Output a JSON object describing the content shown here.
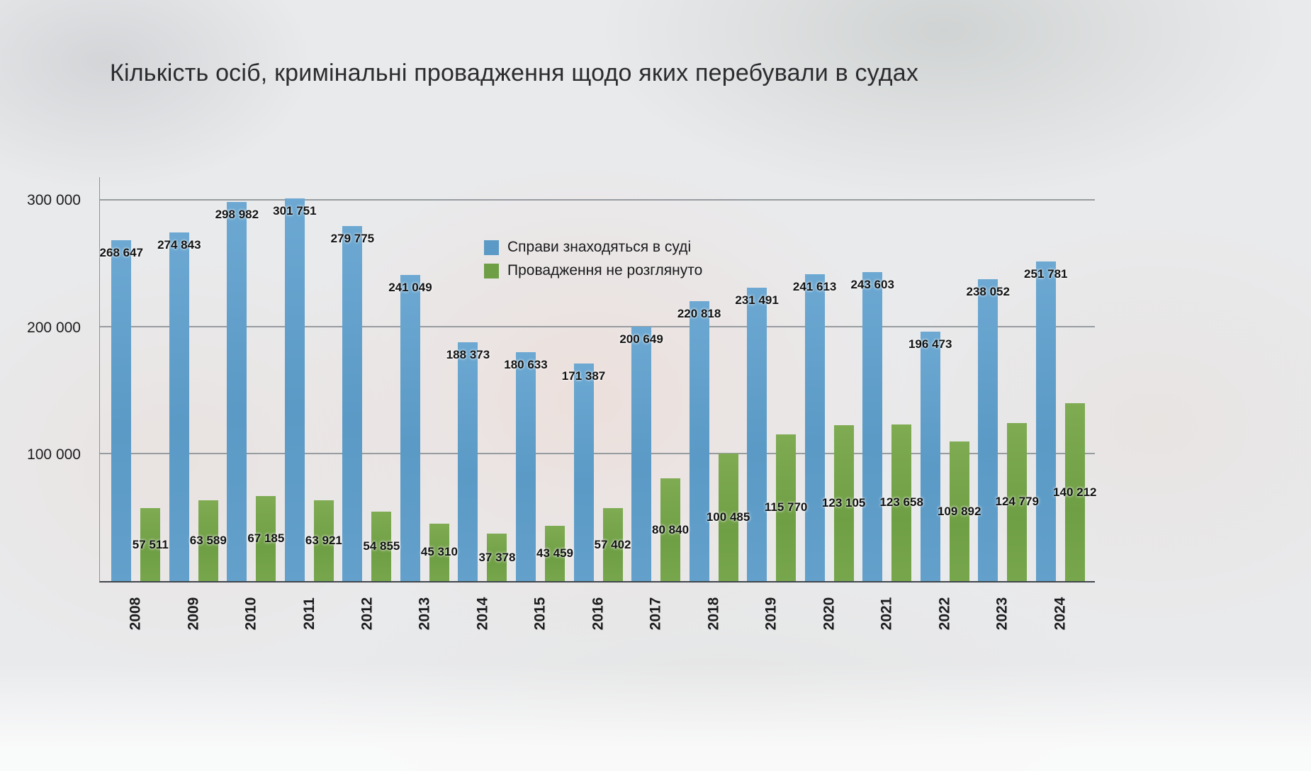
{
  "chart_data": {
    "type": "bar",
    "title": "Кількість осіб, кримінальні провадження щодо яких перебували в судах",
    "categories": [
      "2008",
      "2009",
      "2010",
      "2011",
      "2012",
      "2013",
      "2014",
      "2015",
      "2016",
      "2017",
      "2018",
      "2019",
      "2020",
      "2021",
      "2022",
      "2023",
      "2024"
    ],
    "series": [
      {
        "name": "Справи знаходяться в суді",
        "color": "#5b9ac6",
        "values": [
          268647,
          274843,
          298982,
          301751,
          279775,
          241049,
          188373,
          180633,
          171387,
          200649,
          220818,
          231491,
          241613,
          243603,
          196473,
          238052,
          251781
        ]
      },
      {
        "name": "Провадження не розглянуто",
        "color": "#6f9f45",
        "values": [
          57511,
          63589,
          67185,
          63921,
          54855,
          45310,
          37378,
          43459,
          57402,
          80840,
          100485,
          115770,
          123105,
          123658,
          109892,
          124779,
          140212
        ]
      }
    ],
    "y_ticks": [
      {
        "value": 100000,
        "label": "100 000"
      },
      {
        "value": 200000,
        "label": "200 000"
      },
      {
        "value": 300000,
        "label": "300 000"
      }
    ],
    "ylim": [
      0,
      318400
    ],
    "grid": true,
    "legend_position": "inside-top-center",
    "xlabel": "",
    "ylabel": ""
  }
}
